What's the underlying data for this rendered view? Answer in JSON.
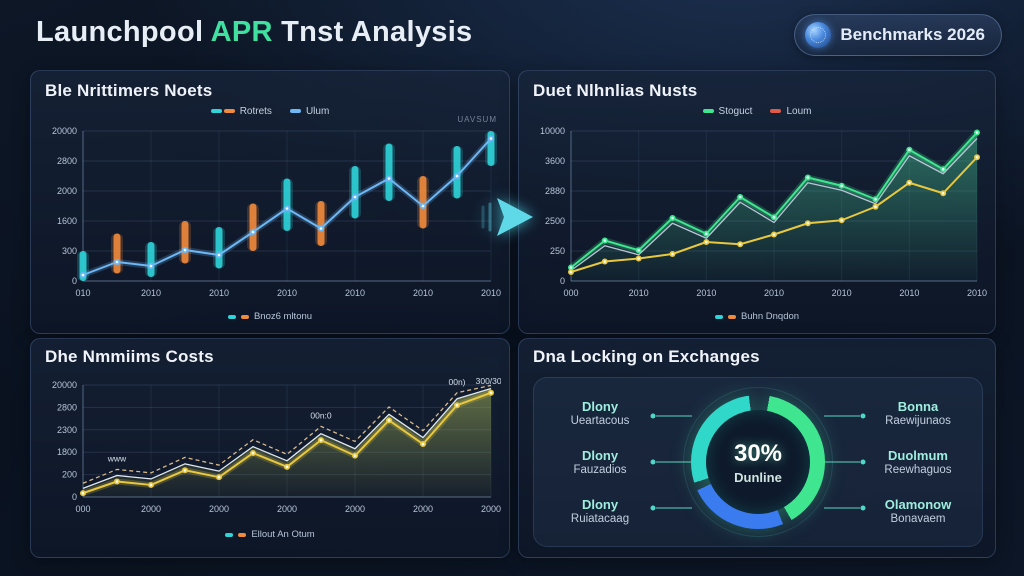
{
  "header": {
    "title_prefix": "Launchpool ",
    "title_accent": "APR",
    "title_suffix": " Tnst Analysis",
    "badge": {
      "label": "Benchmarks 2026",
      "icon": "coin-globe-icon"
    }
  },
  "colors": {
    "accent_green": "#3fe0a0",
    "teal": "#2fd3d8",
    "orange": "#f08a3c",
    "blue_line": "#6db8f5",
    "green_line": "#3fe68f",
    "yellow_line": "#e8c83f",
    "white_line": "#dfe8f2",
    "tan_line": "#d8b98a",
    "red_legend": "#e05a4a",
    "donut_green": "#3fe68f",
    "donut_teal": "#2fd8c8",
    "donut_blue": "#3b7bf0"
  },
  "chart_data": [
    {
      "id": "nets-top-left",
      "type": "candlestick+line",
      "title": "Ble Nrittimers Noets",
      "watermark": "UAVSUM",
      "legend": [
        {
          "label": "Rotrets",
          "colors": [
            "#2fd3d8",
            "#f08a3c"
          ]
        },
        {
          "label": "Ulum",
          "colors": [
            "#6db8f5"
          ]
        }
      ],
      "footer_legend": {
        "label": "Bnoz6 mltonu",
        "colors": [
          "#2fd3d8",
          "#f08a3c"
        ]
      },
      "ymax": 3000,
      "yticks": [
        "20000",
        "2800",
        "2000",
        "1600",
        "300",
        "0"
      ],
      "xticks": [
        "010",
        "2010",
        "2010",
        "2010",
        "2010",
        "2010",
        "2010"
      ],
      "bars": {
        "lo": [
          0,
          150,
          80,
          350,
          250,
          600,
          1000,
          700,
          1250,
          1600,
          1050,
          1650,
          2300
        ],
        "hi": [
          600,
          950,
          780,
          1200,
          1080,
          1550,
          2050,
          1600,
          2300,
          2750,
          2100,
          2700,
          3000
        ],
        "colors": [
          "teal",
          "orange",
          "teal",
          "orange",
          "teal",
          "orange",
          "teal",
          "orange",
          "teal",
          "teal",
          "orange",
          "teal",
          "teal"
        ]
      },
      "series": [
        {
          "name": "Ulum",
          "color": "#6db8f5",
          "values": [
            120,
            380,
            300,
            620,
            520,
            980,
            1450,
            1050,
            1680,
            2050,
            1500,
            2100,
            2850
          ],
          "dots": true,
          "glow": true
        }
      ]
    },
    {
      "id": "costs-bottom-left",
      "type": "area+line",
      "title": "Dhe Nmmiims Costs",
      "footer_legend": {
        "label": "Ellout An Otum",
        "colors": [
          "#2fd3d8",
          "#f08a3c"
        ]
      },
      "ymax": 2600,
      "yticks": [
        "20000",
        "2800",
        "2300",
        "1800",
        "200",
        "0"
      ],
      "xticks": [
        "000",
        "2000",
        "2000",
        "2000",
        "2000",
        "2000",
        "2000"
      ],
      "series": [
        {
          "name": "tan",
          "color": "#d8b98a",
          "values": [
            320,
            640,
            560,
            920,
            740,
            1330,
            990,
            1640,
            1290,
            2090,
            1540,
            2420,
            2590
          ],
          "dash": true,
          "thin": true
        },
        {
          "name": "white",
          "color": "#dfe8f2",
          "values": [
            200,
            500,
            420,
            770,
            600,
            1170,
            840,
            1470,
            1120,
            1920,
            1380,
            2280,
            2520
          ],
          "area": "#9fae55",
          "thin": true
        },
        {
          "name": "yellow",
          "color": "#e8c83f",
          "values": [
            90,
            360,
            280,
            620,
            460,
            1020,
            700,
            1320,
            960,
            1780,
            1230,
            2130,
            2420
          ],
          "dots": true,
          "glow": true
        }
      ],
      "annotations": [
        {
          "s": 0,
          "i": 1,
          "t": "www"
        },
        {
          "s": 0,
          "i": 7,
          "t": "00n:0"
        },
        {
          "s": 0,
          "i": 11,
          "t": "00n)"
        },
        {
          "s": 0,
          "i": 12,
          "t": "300/300"
        }
      ]
    },
    {
      "id": "nusts-top-right",
      "type": "line+area",
      "title": "Duet Nlhnlias Nusts",
      "legend": [
        {
          "label": "Stoguct",
          "colors": [
            "#3fe68f"
          ]
        },
        {
          "label": "Loum",
          "colors": [
            "#e05a4a"
          ]
        }
      ],
      "footer_legend": {
        "label": "Buhn Dnqdon",
        "colors": [
          "#2fd3d8",
          "#f08a3c"
        ]
      },
      "ymax": 10000,
      "yticks": [
        "10000",
        "3600",
        "2880",
        "2500",
        "250",
        "0"
      ],
      "xticks": [
        "000",
        "2010",
        "2010",
        "2010",
        "2010",
        "2010",
        "2010"
      ],
      "series": [
        {
          "name": "gray",
          "color": "#b9c6d8",
          "values": [
            700,
            2350,
            1750,
            3850,
            2850,
            5250,
            3900,
            6550,
            6050,
            5150,
            8350,
            7150,
            9500
          ],
          "thin": true
        },
        {
          "name": "Stoguct",
          "color": "#3fe68f",
          "values": [
            900,
            2700,
            2050,
            4200,
            3150,
            5600,
            4250,
            6900,
            6350,
            5450,
            8750,
            7450,
            9900
          ],
          "dots": true,
          "glow": true,
          "area": "#3fae85"
        },
        {
          "name": "Loum",
          "color": "#e8c83f",
          "values": [
            600,
            1300,
            1500,
            1800,
            2600,
            2450,
            3100,
            3850,
            4050,
            4950,
            6550,
            5850,
            8250
          ],
          "dots": true
        }
      ]
    },
    {
      "id": "locking-donut",
      "type": "donut",
      "title": "Dna Locking on Exchanges",
      "center_value": "30%",
      "center_label": "Dunline",
      "segments": [
        {
          "color": "#3fe68f",
          "from": 10,
          "to": 150
        },
        {
          "color": "#3b7bf0",
          "from": 158,
          "to": 245
        },
        {
          "color": "#2fd8c8",
          "from": 252,
          "to": 352
        }
      ],
      "left_items": [
        {
          "label": "Dlony",
          "sub": "Ueartacous"
        },
        {
          "label": "Dlony",
          "sub": "Fauzadios"
        },
        {
          "label": "Dlony",
          "sub": "Ruiatacaag"
        }
      ],
      "right_items": [
        {
          "label": "Bonna",
          "sub": "Raewijunaos"
        },
        {
          "label": "Duolmum",
          "sub": "Reewhaguos"
        },
        {
          "label": "Olamonow",
          "sub": "Bonavaem"
        }
      ]
    }
  ]
}
